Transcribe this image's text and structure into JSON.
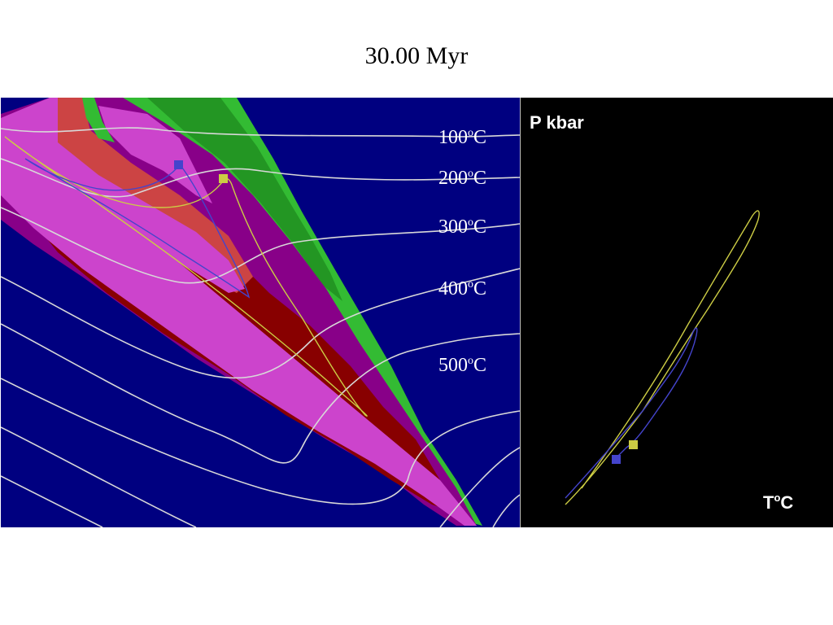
{
  "title": "30.00 Myr",
  "model_panel": {
    "isotherms": [
      {
        "value": "100",
        "sup": "o",
        "unit": "C"
      },
      {
        "value": "200",
        "sup": "o",
        "unit": "C"
      },
      {
        "value": "300",
        "sup": "o",
        "unit": "C"
      },
      {
        "value": "400",
        "sup": "o",
        "unit": "C"
      },
      {
        "value": "500",
        "sup": "o",
        "unit": "C"
      }
    ],
    "colors": {
      "background": "#000080",
      "green": "#33bb33",
      "dark_green": "#1f8a1f",
      "magenta": "#cc44cc",
      "purple": "#880088",
      "red": "#cc4444",
      "dark_red": "#880000",
      "isotherm": "#d8d8d8",
      "blue_path": "#4444cc",
      "yellow_path": "#cccc44"
    },
    "markers": [
      {
        "name": "blue-marker",
        "color": "#4444cc"
      },
      {
        "name": "yellow-marker",
        "color": "#cccc44"
      }
    ]
  },
  "pt_panel": {
    "y_label": "P kbar",
    "x_label": {
      "base": "T",
      "sup": "o",
      "unit": "C"
    },
    "background": "#000000",
    "paths": [
      {
        "name": "yellow-pt-path",
        "color": "#cccc44"
      },
      {
        "name": "blue-pt-path",
        "color": "#4444cc"
      }
    ]
  }
}
